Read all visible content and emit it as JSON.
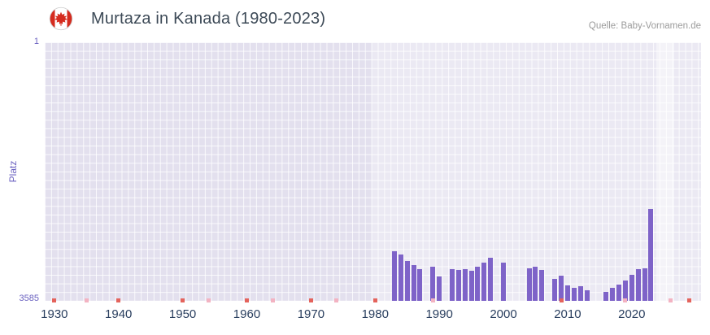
{
  "header": {
    "title": "Murtaza in Kanada (1980-2023)",
    "source": "Quelle: Baby-Vornamen.de"
  },
  "chart_data": {
    "type": "bar",
    "title": "Murtaza in Kanada (1980-2023)",
    "xlabel": "",
    "ylabel": "Platz",
    "y_axis_inverted": true,
    "yticks": [
      "1",
      "3585"
    ],
    "xticks": [
      1930,
      1940,
      1950,
      1960,
      1970,
      1980,
      1990,
      2000,
      2010,
      2020
    ],
    "xlim": [
      1928.5,
      2030.8
    ],
    "ylim": [
      1,
      3585
    ],
    "grid": true,
    "bar_color": "#7e63c8",
    "mark_colors": {
      "red": "#e4635c",
      "pink": "#f3b3c2"
    },
    "background_regions": [
      {
        "from": 1979.5,
        "to": 2030.8,
        "lighten": 0.3
      },
      {
        "from": 2023.8,
        "to": 2026.6,
        "lighten": 0.45
      }
    ],
    "bars": [
      {
        "year": 1983,
        "rank": 2900
      },
      {
        "year": 1984,
        "rank": 2940
      },
      {
        "year": 1985,
        "rank": 3030
      },
      {
        "year": 1986,
        "rank": 3090
      },
      {
        "year": 1987,
        "rank": 3150
      },
      {
        "year": 1989,
        "rank": 3110
      },
      {
        "year": 1990,
        "rank": 3250
      },
      {
        "year": 1992,
        "rank": 3140
      },
      {
        "year": 1993,
        "rank": 3160
      },
      {
        "year": 1994,
        "rank": 3140
      },
      {
        "year": 1995,
        "rank": 3170
      },
      {
        "year": 1996,
        "rank": 3110
      },
      {
        "year": 1997,
        "rank": 3050
      },
      {
        "year": 1998,
        "rank": 2990
      },
      {
        "year": 2000,
        "rank": 3050
      },
      {
        "year": 2004,
        "rank": 3130
      },
      {
        "year": 2005,
        "rank": 3110
      },
      {
        "year": 2006,
        "rank": 3160
      },
      {
        "year": 2008,
        "rank": 3280
      },
      {
        "year": 2009,
        "rank": 3240
      },
      {
        "year": 2010,
        "rank": 3370
      },
      {
        "year": 2011,
        "rank": 3400
      },
      {
        "year": 2012,
        "rank": 3380
      },
      {
        "year": 2013,
        "rank": 3440
      },
      {
        "year": 2016,
        "rank": 3460
      },
      {
        "year": 2017,
        "rank": 3410
      },
      {
        "year": 2018,
        "rank": 3360
      },
      {
        "year": 2019,
        "rank": 3300
      },
      {
        "year": 2020,
        "rank": 3220
      },
      {
        "year": 2021,
        "rank": 3140
      },
      {
        "year": 2022,
        "rank": 3130
      },
      {
        "year": 2023,
        "rank": 2310
      }
    ],
    "no_rank_marks": [
      {
        "year": 1930,
        "tone": "red"
      },
      {
        "year": 1935,
        "tone": "pink"
      },
      {
        "year": 1940,
        "tone": "red"
      },
      {
        "year": 1950,
        "tone": "red"
      },
      {
        "year": 1954,
        "tone": "pink"
      },
      {
        "year": 1960,
        "tone": "red"
      },
      {
        "year": 1964,
        "tone": "pink"
      },
      {
        "year": 1970,
        "tone": "red"
      },
      {
        "year": 1974,
        "tone": "pink"
      },
      {
        "year": 1980,
        "tone": "red"
      },
      {
        "year": 1989,
        "tone": "pink"
      },
      {
        "year": 2009,
        "tone": "red"
      },
      {
        "year": 2019,
        "tone": "pink"
      },
      {
        "year": 2026,
        "tone": "pink"
      },
      {
        "year": 2029,
        "tone": "red"
      }
    ]
  },
  "colors": {
    "title": "#3d4a57",
    "source": "#9b9b9b",
    "y_axis": "#6a61c0",
    "x_axis": "#2a3f5f",
    "plot_bg": "#e3e0ee",
    "flag_red": "#d52b1e"
  }
}
